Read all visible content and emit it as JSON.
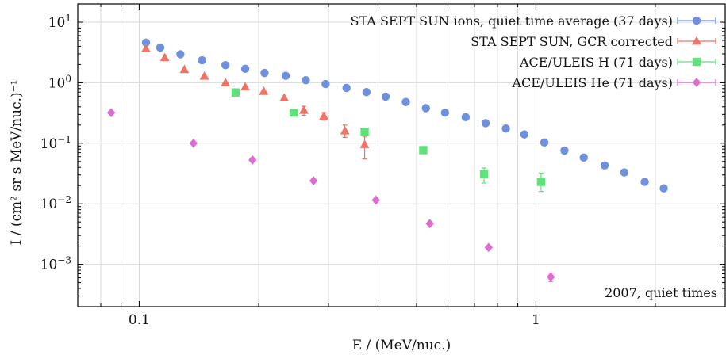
{
  "chart_data": {
    "type": "scatter",
    "xlabel": "E / (MeV/nuc.)",
    "ylabel": "I / (cm² sr s MeV/nuc.)⁻¹",
    "x_scale": "log",
    "y_scale": "log",
    "xlim": [
      0.07,
      3.0
    ],
    "ylim": [
      0.0002,
      20
    ],
    "grid": true,
    "legend_position": "top-right",
    "x_tick_labels": [
      "0.1",
      "1"
    ],
    "x_tick_values": [
      0.1,
      1
    ],
    "y_ticks": [
      {
        "value": 10,
        "base": "10",
        "exp": "1"
      },
      {
        "value": 1,
        "base": "10",
        "exp": "0"
      },
      {
        "value": 0.1,
        "base": "10",
        "exp": "−1"
      },
      {
        "value": 0.01,
        "base": "10",
        "exp": "−2"
      },
      {
        "value": 0.001,
        "base": "10",
        "exp": "−3"
      }
    ],
    "annotation": "2007, quiet times",
    "series": [
      {
        "name": "STA SEPT SUN ions, quiet time average (37 days)",
        "marker": "circle",
        "color": "#6f8fdf",
        "x": [
          0.104,
          0.113,
          0.127,
          0.144,
          0.165,
          0.185,
          0.207,
          0.234,
          0.263,
          0.295,
          0.333,
          0.374,
          0.418,
          0.47,
          0.528,
          0.59,
          0.665,
          0.747,
          0.84,
          0.935,
          1.05,
          1.18,
          1.32,
          1.49,
          1.67,
          1.88,
          2.1
        ],
        "y": [
          4.6,
          3.8,
          2.95,
          2.35,
          1.95,
          1.7,
          1.45,
          1.3,
          1.1,
          0.95,
          0.82,
          0.7,
          0.59,
          0.48,
          0.38,
          0.32,
          0.27,
          0.215,
          0.175,
          0.14,
          0.103,
          0.076,
          0.058,
          0.043,
          0.033,
          0.023,
          0.018
        ]
      },
      {
        "name": "STA SEPT SUN, GCR corrected",
        "marker": "triangle",
        "color": "#ef7468",
        "x": [
          0.104,
          0.116,
          0.13,
          0.146,
          0.165,
          0.185,
          0.206,
          0.232,
          0.26,
          0.292,
          0.33,
          0.37
        ],
        "y": [
          3.65,
          2.6,
          1.65,
          1.28,
          1.0,
          0.85,
          0.72,
          0.56,
          0.35,
          0.28,
          0.16,
          0.095
        ],
        "err_low": [
          null,
          null,
          null,
          null,
          null,
          null,
          null,
          null,
          0.29,
          0.24,
          0.125,
          0.055
        ],
        "err_high": [
          null,
          null,
          null,
          null,
          null,
          null,
          null,
          null,
          0.41,
          0.32,
          0.2,
          0.13
        ]
      },
      {
        "name": "ACE/ULEIS H (71 days)",
        "marker": "square",
        "color": "#60e27a",
        "x": [
          0.175,
          0.245,
          0.37,
          0.52,
          0.74,
          1.03
        ],
        "y": [
          0.69,
          0.32,
          0.155,
          0.077,
          0.031,
          0.023
        ],
        "err_low": [
          null,
          null,
          null,
          0.068,
          0.022,
          0.016
        ],
        "err_high": [
          null,
          null,
          null,
          0.086,
          0.039,
          0.032
        ]
      },
      {
        "name": "ACE/ULEIS He (71 days)",
        "marker": "diamond",
        "color": "#dd6ed1",
        "x": [
          0.085,
          0.137,
          0.193,
          0.275,
          0.395,
          0.54,
          0.76,
          1.09
        ],
        "y": [
          0.32,
          0.1,
          0.053,
          0.024,
          0.0115,
          0.0047,
          0.0019,
          0.00062
        ],
        "err_low": [
          null,
          null,
          null,
          null,
          null,
          null,
          null,
          0.00052
        ],
        "err_high": [
          null,
          null,
          null,
          null,
          null,
          null,
          null,
          0.00072
        ]
      }
    ]
  }
}
